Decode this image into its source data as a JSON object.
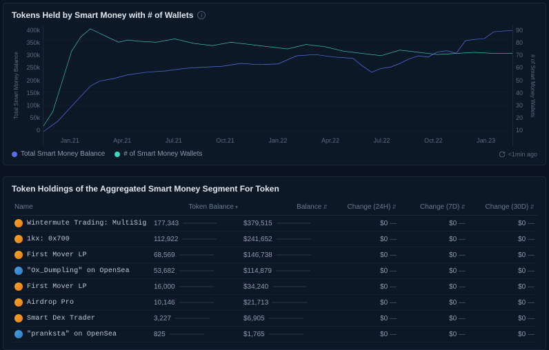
{
  "colors": {
    "background": "#0a1420",
    "panel": "#0d1826",
    "border": "#1a2838",
    "text_primary": "#e0e6ed",
    "text_secondary": "#8a9bb0",
    "text_muted": "#5a6b80",
    "series_balance": "#5b6ee8",
    "series_wallets": "#3dd6c4",
    "grid": "#14202e"
  },
  "chart": {
    "title": "Tokens Held by Smart Money with # of Wallets",
    "type": "line",
    "y_left": {
      "label": "Total Smart Money Balance",
      "ticks": [
        "400k",
        "350k",
        "300k",
        "250k",
        "200k",
        "150k",
        "100k",
        "50k",
        "0"
      ],
      "min": 0,
      "max": 420000
    },
    "y_right": {
      "label": "# of Smart Money Wallets",
      "ticks": [
        "90",
        "80",
        "70",
        "60",
        "50",
        "40",
        "30",
        "20",
        "10"
      ],
      "min": 0,
      "max": 95
    },
    "x_ticks": [
      "Jan.21",
      "Apr.21",
      "Jul.21",
      "Oct.21",
      "Jan.22",
      "Apr.22",
      "Jul.22",
      "Oct.22",
      "Jan.23"
    ],
    "legend": {
      "balance": "Total Smart Money Balance",
      "wallets": "# of Smart Money Wallets"
    },
    "timestamp": "<1min ago",
    "series_balance": {
      "color": "#5b6ee8",
      "points": [
        [
          0,
          0
        ],
        [
          3,
          40
        ],
        [
          5,
          80
        ],
        [
          8,
          140
        ],
        [
          10,
          180
        ],
        [
          12,
          200
        ],
        [
          15,
          210
        ],
        [
          18,
          225
        ],
        [
          22,
          235
        ],
        [
          26,
          240
        ],
        [
          30,
          250
        ],
        [
          34,
          255
        ],
        [
          38,
          258
        ],
        [
          42,
          270
        ],
        [
          46,
          265
        ],
        [
          50,
          268
        ],
        [
          54,
          300
        ],
        [
          58,
          305
        ],
        [
          62,
          295
        ],
        [
          66,
          290
        ],
        [
          68,
          260
        ],
        [
          70,
          235
        ],
        [
          72,
          250
        ],
        [
          74,
          255
        ],
        [
          76,
          270
        ],
        [
          78,
          288
        ],
        [
          80,
          300
        ],
        [
          82,
          295
        ],
        [
          84,
          315
        ],
        [
          86,
          320
        ],
        [
          88,
          310
        ],
        [
          90,
          360
        ],
        [
          92,
          365
        ],
        [
          94,
          368
        ],
        [
          96,
          395
        ],
        [
          98,
          398
        ],
        [
          100,
          400
        ]
      ]
    },
    "series_wallets": {
      "color": "#3dd6c4",
      "points": [
        [
          0,
          5
        ],
        [
          2,
          18
        ],
        [
          4,
          45
        ],
        [
          6,
          72
        ],
        [
          8,
          85
        ],
        [
          10,
          92
        ],
        [
          12,
          88
        ],
        [
          14,
          84
        ],
        [
          16,
          80
        ],
        [
          18,
          82
        ],
        [
          20,
          81
        ],
        [
          24,
          80
        ],
        [
          28,
          83
        ],
        [
          32,
          79
        ],
        [
          36,
          77
        ],
        [
          40,
          80
        ],
        [
          44,
          78
        ],
        [
          48,
          76
        ],
        [
          52,
          74
        ],
        [
          56,
          78
        ],
        [
          60,
          76
        ],
        [
          64,
          72
        ],
        [
          68,
          70
        ],
        [
          72,
          68
        ],
        [
          76,
          73
        ],
        [
          80,
          71
        ],
        [
          84,
          69
        ],
        [
          88,
          70
        ],
        [
          92,
          71
        ],
        [
          96,
          70
        ],
        [
          100,
          70
        ]
      ]
    }
  },
  "table": {
    "title": "Token Holdings of the Aggregated Smart Money Segment For Token",
    "columns": {
      "name": "Name",
      "token_balance": "Token Balance",
      "balance": "Balance",
      "change_24h": "Change (24H)",
      "change_7d": "Change (7D)",
      "change_30d": "Change (30D)"
    },
    "max_token_balance": 177343,
    "rows": [
      {
        "name": "Wintermute Trading: MultiSig",
        "mono": true,
        "icon": "gold",
        "token_balance": "177,343",
        "tb_num": 177343,
        "balance": "$379,515",
        "c24": "$0",
        "c7": "$0",
        "c30": "$0"
      },
      {
        "name": "1kx: 0x700",
        "mono": true,
        "icon": "gold",
        "token_balance": "112,922",
        "tb_num": 112922,
        "balance": "$241,652",
        "c24": "$0",
        "c7": "$0",
        "c30": "$0"
      },
      {
        "name": "First Mover LP",
        "mono": true,
        "icon": "gold",
        "token_balance": "68,569",
        "tb_num": 68569,
        "balance": "$146,738",
        "c24": "$0",
        "c7": "$0",
        "c30": "$0"
      },
      {
        "name": "\"Ox_Dumpling\" on OpenSea",
        "mono": true,
        "icon": "blue",
        "token_balance": "53,682",
        "tb_num": 53682,
        "balance": "$114,879",
        "c24": "$0",
        "c7": "$0",
        "c30": "$0"
      },
      {
        "name": "First Mover LP",
        "mono": true,
        "icon": "gold",
        "token_balance": "16,000",
        "tb_num": 16000,
        "balance": "$34,240",
        "c24": "$0",
        "c7": "$0",
        "c30": "$0"
      },
      {
        "name": "Airdrop Pro",
        "mono": true,
        "icon": "gold",
        "token_balance": "10,146",
        "tb_num": 10146,
        "balance": "$21,713",
        "c24": "$0",
        "c7": "$0",
        "c30": "$0"
      },
      {
        "name": "Smart Dex Trader",
        "mono": true,
        "icon": "gold",
        "token_balance": "3,227",
        "tb_num": 3227,
        "balance": "$6,905",
        "c24": "$0",
        "c7": "$0",
        "c30": "$0"
      },
      {
        "name": "\"pranksta\" on OpenSea",
        "mono": true,
        "icon": "blue",
        "token_balance": "825",
        "tb_num": 825,
        "balance": "$1,765",
        "c24": "$0",
        "c7": "$0",
        "c30": "$0"
      }
    ]
  }
}
